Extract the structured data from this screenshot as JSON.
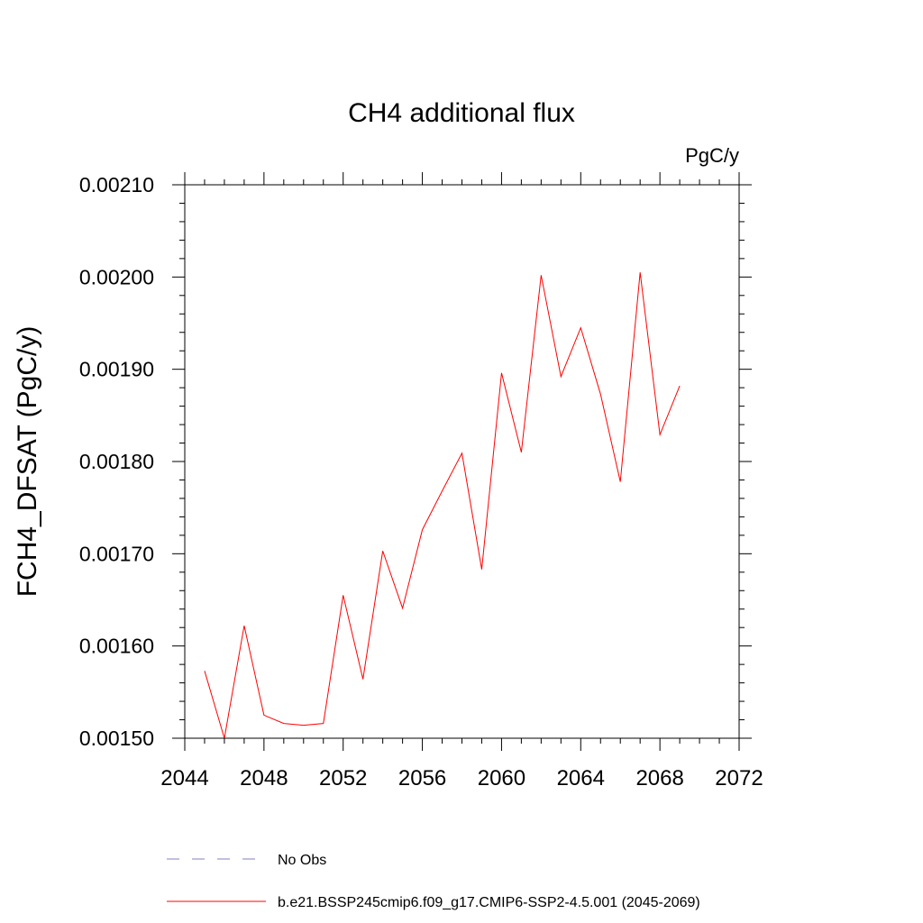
{
  "chart_data": {
    "type": "line",
    "title": "CH4 additional flux",
    "units": "PgC/y",
    "ylabel": "FCH4_DFSAT  (PgC/y)",
    "xlabel": "",
    "xlim": [
      2044,
      2072
    ],
    "ylim": [
      0.0015,
      0.0021
    ],
    "xticks": [
      2044,
      2048,
      2052,
      2056,
      2060,
      2064,
      2068,
      2072
    ],
    "xtick_labels": [
      "2044",
      "2048",
      "2052",
      "2056",
      "2060",
      "2064",
      "2068",
      "2072"
    ],
    "yticks": [
      0.0015,
      0.0016,
      0.0017,
      0.0018,
      0.0019,
      0.002,
      0.0021
    ],
    "ytick_labels": [
      "0.00150",
      "0.00160",
      "0.00170",
      "0.00180",
      "0.00190",
      "0.00200",
      "0.00210"
    ],
    "grid": false,
    "legend_position": "bottom",
    "series": [
      {
        "name": "No Obs",
        "color": "#8080c0",
        "dash": "dashed",
        "x": [],
        "y": []
      },
      {
        "name": "b.e21.BSSP245cmip6.f09_g17.CMIP6-SSP2-4.5.001 (2045-2069)",
        "color": "#ff0000",
        "dash": "solid",
        "x": [
          2045,
          2046,
          2047,
          2048,
          2049,
          2050,
          2051,
          2052,
          2053,
          2054,
          2055,
          2056,
          2057,
          2058,
          2059,
          2060,
          2061,
          2062,
          2063,
          2064,
          2065,
          2066,
          2067,
          2068,
          2069
        ],
        "y": [
          0.001573,
          0.0015,
          0.001622,
          0.001525,
          0.001516,
          0.001514,
          0.001516,
          0.001655,
          0.001564,
          0.001703,
          0.001641,
          0.001726,
          0.001768,
          0.001809,
          0.001683,
          0.001896,
          0.00181,
          0.002002,
          0.001892,
          0.001945,
          0.001873,
          0.001778,
          0.002005,
          0.001829,
          0.001882
        ]
      }
    ]
  }
}
